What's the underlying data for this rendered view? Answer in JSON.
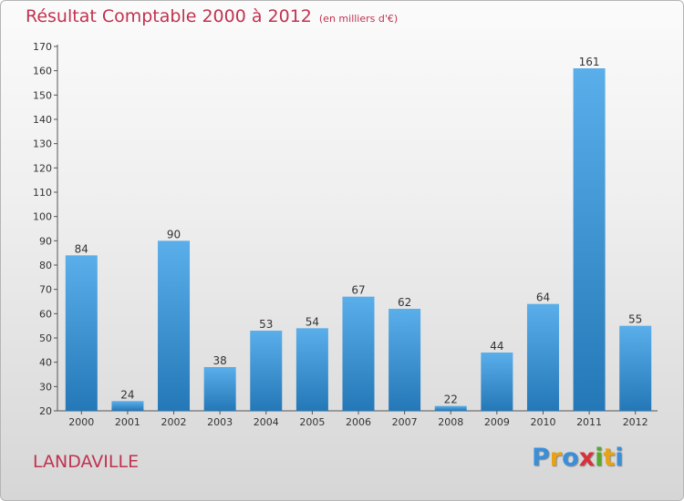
{
  "header": {
    "title": "Résultat Comptable 2000 à 2012",
    "subtitle": "(en milliers d'€)"
  },
  "footer": {
    "commune": "LANDAVILLE",
    "logo": [
      "P",
      "r",
      "o",
      "x",
      "i",
      "t",
      "i"
    ],
    "logo_colors": [
      "#3a8fd8",
      "#e8a215",
      "#3a8fd8",
      "#d8313a",
      "#58a82f",
      "#e8a215",
      "#3a8fd8"
    ]
  },
  "chart_data": {
    "type": "bar",
    "categories": [
      "2000",
      "2001",
      "2002",
      "2003",
      "2004",
      "2005",
      "2006",
      "2007",
      "2008",
      "2009",
      "2010",
      "2011",
      "2012"
    ],
    "values": [
      84,
      24,
      90,
      38,
      53,
      54,
      67,
      62,
      22,
      44,
      64,
      161,
      55
    ],
    "title": "Résultat Comptable 2000 à 2012",
    "xlabel": "",
    "ylabel": "",
    "ylim": [
      20,
      170
    ],
    "yticks": [
      20,
      30,
      40,
      50,
      60,
      70,
      80,
      90,
      100,
      110,
      120,
      130,
      140,
      150,
      160,
      170
    ],
    "grid": false,
    "bar_color_top": "#5aaeea",
    "bar_color_bottom": "#2478b7"
  }
}
